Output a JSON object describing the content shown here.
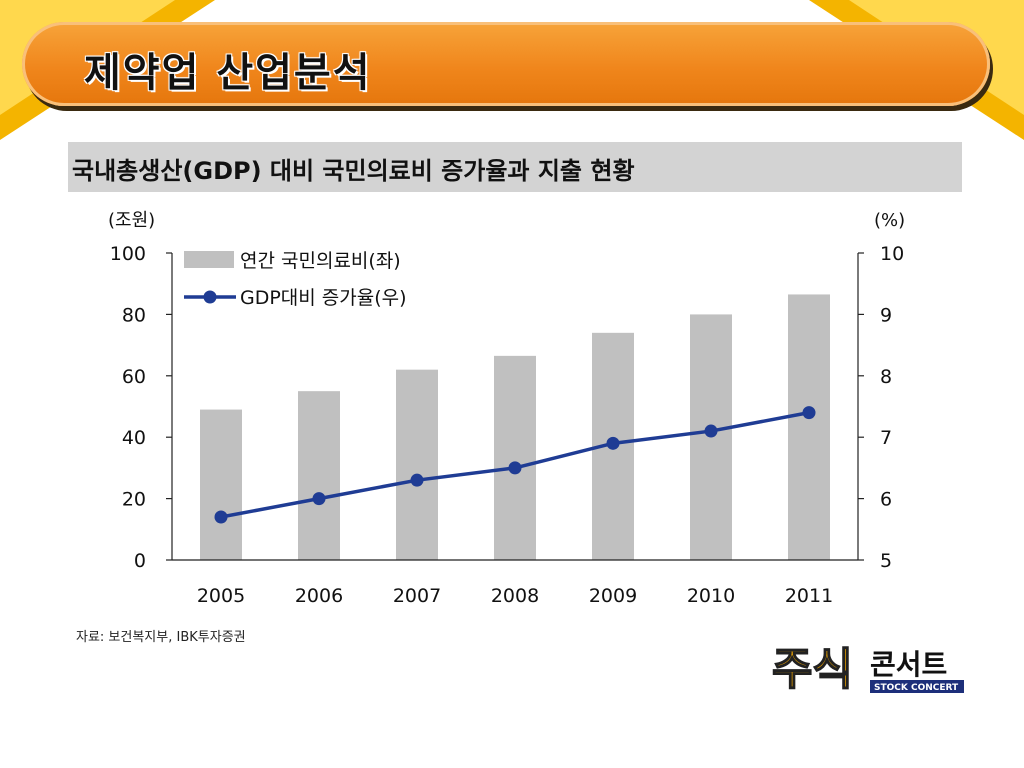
{
  "slide": {
    "title": "제약업 산업분석",
    "chart_header": "국내총생산(GDP) 대비 국민의료비 증가율과 지출 현황",
    "source": "자료: 보건복지부, IBK투자증권",
    "logo_text": "주식",
    "logo_text2": "콘서트",
    "logo_subtext": "STOCK CONCERT",
    "accent_color": "#f0861c",
    "corner_color": "#f4b400"
  },
  "chart_data": {
    "type": "bar",
    "title": "국내총생산(GDP) 대비 국민의료비 증가율과 지출 현황",
    "categories": [
      "2005",
      "2006",
      "2007",
      "2008",
      "2009",
      "2010",
      "2011"
    ],
    "left_axis_unit": "(조원)",
    "right_axis_unit": "(%)",
    "ylim": [
      0,
      100
    ],
    "ylim_right": [
      5,
      10
    ],
    "left_ticks": [
      "0",
      "20",
      "40",
      "60",
      "80",
      "100"
    ],
    "right_ticks": [
      "5",
      "6",
      "7",
      "8",
      "9",
      "10"
    ],
    "series": [
      {
        "name": "연간 국민의료비(좌)",
        "type": "bar",
        "axis": "left",
        "color": "#c0c0c0",
        "values": [
          49,
          55,
          62,
          66.5,
          74,
          80,
          86.5
        ]
      },
      {
        "name": "GDP대비 증가율(우)",
        "type": "line",
        "axis": "right",
        "color": "#1f3c94",
        "values": [
          5.7,
          6.0,
          6.3,
          6.5,
          6.9,
          7.1,
          7.4
        ]
      }
    ],
    "legend_position": "top-left",
    "grid": false
  }
}
